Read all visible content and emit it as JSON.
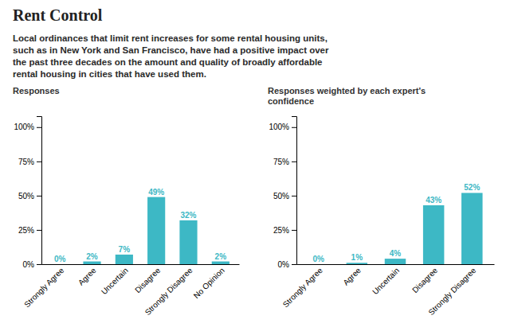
{
  "title": "Rent Control",
  "subtitle": [
    "Local ordinances that limit rent increases for some rental housing units,",
    "such as in New York and San Francisco, have had a positive impact over",
    "the past three decades on the amount and quality of broadly affordable",
    "rental housing in cities that have used them."
  ],
  "chart_data": [
    {
      "type": "bar",
      "title": "Responses",
      "categories": [
        "Strongly Agree",
        "Agree",
        "Uncertain",
        "Disagree",
        "Strongly Disagree",
        "No Opinion"
      ],
      "values": [
        0,
        2,
        7,
        49,
        32,
        2
      ],
      "value_labels": [
        "0%",
        "2%",
        "7%",
        "49%",
        "32%",
        "2%"
      ],
      "color": "#3db8c5",
      "ylim": [
        0,
        108
      ],
      "yticks": [
        {
          "value": 0,
          "label": "0%"
        },
        {
          "value": 25,
          "label": "25%"
        },
        {
          "value": 50,
          "label": "50%"
        },
        {
          "value": 75,
          "label": "75%"
        },
        {
          "value": 100,
          "label": "100%"
        }
      ],
      "grid": false,
      "data_labels": true
    },
    {
      "type": "bar",
      "title": [
        "Responses weighted by each expert's",
        "confidence"
      ],
      "categories": [
        "Strongly Agree",
        "Agree",
        "Uncertain",
        "Disagree",
        "Strongly Disagree"
      ],
      "values": [
        0,
        1,
        4,
        43,
        52
      ],
      "value_labels": [
        "0%",
        "1%",
        "4%",
        "43%",
        "52%"
      ],
      "color": "#3db8c5",
      "ylim": [
        0,
        108
      ],
      "yticks": [
        {
          "value": 0,
          "label": "0%"
        },
        {
          "value": 25,
          "label": "25%"
        },
        {
          "value": 50,
          "label": "50%"
        },
        {
          "value": 75,
          "label": "75%"
        },
        {
          "value": 100,
          "label": "100%"
        }
      ],
      "grid": false,
      "data_labels": true
    }
  ]
}
